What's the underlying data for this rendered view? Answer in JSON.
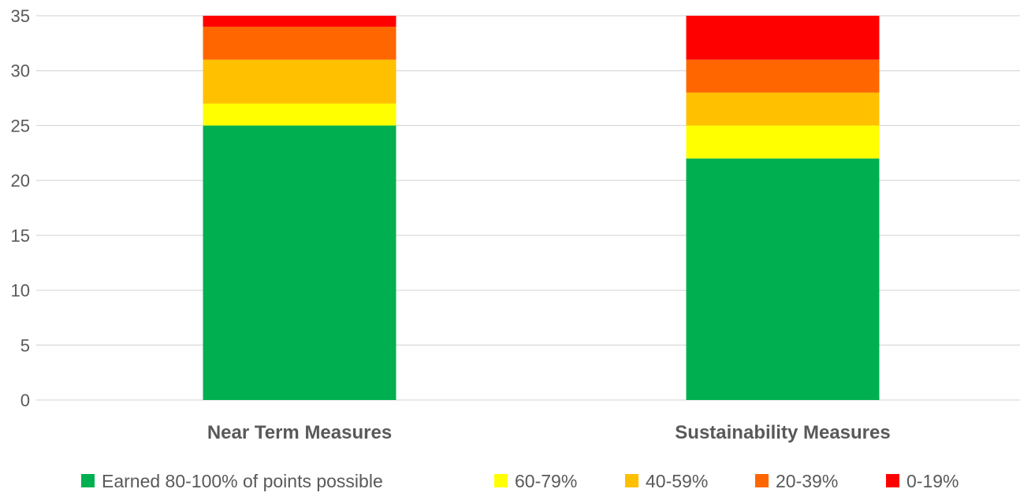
{
  "chart_data": {
    "type": "bar",
    "stacked": true,
    "categories": [
      "Near Term Measures",
      "Sustainability Measures"
    ],
    "series": [
      {
        "name": "Earned 80-100% of points possible",
        "values": [
          25,
          22
        ],
        "color": "#00B050"
      },
      {
        "name": "60-79%",
        "values": [
          2,
          3
        ],
        "color": "#FFFF00"
      },
      {
        "name": "40-59%",
        "values": [
          4,
          3
        ],
        "color": "#FFC000"
      },
      {
        "name": "20-39%",
        "values": [
          3,
          3
        ],
        "color": "#FF6600"
      },
      {
        "name": "0-19%",
        "values": [
          1,
          4
        ],
        "color": "#FF0000"
      }
    ],
    "y_ticks": [
      "0",
      "5",
      "10",
      "15",
      "20",
      "25",
      "30",
      "35"
    ],
    "ylim": [
      0,
      35
    ],
    "grid": true,
    "legend_position": "bottom"
  }
}
